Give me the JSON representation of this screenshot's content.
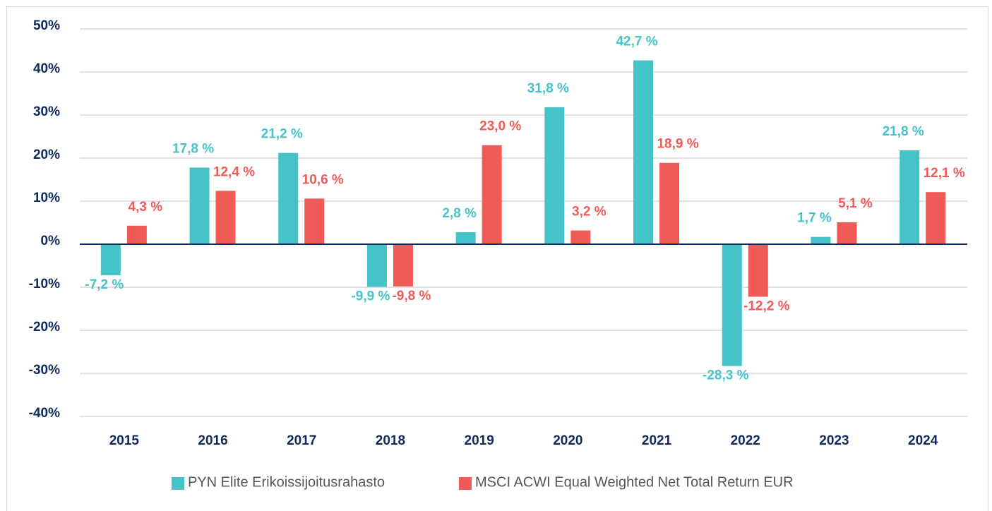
{
  "chart_data": {
    "type": "bar",
    "categories": [
      "2015",
      "2016",
      "2017",
      "2018",
      "2019",
      "2020",
      "2021",
      "2022",
      "2023",
      "2024"
    ],
    "series": [
      {
        "name": "PYN Elite Erikoissijoitusrahasto",
        "color": "#45c3c8",
        "values": [
          -7.2,
          17.8,
          21.2,
          -9.9,
          2.8,
          31.8,
          42.7,
          -28.3,
          1.7,
          21.8
        ],
        "value_labels": [
          "-7,2 %",
          "17,8 %",
          "21,2 %",
          "-9,9 %",
          "2,8 %",
          "31,8 %",
          "42,7 %",
          "-28,3 %",
          "1,7 %",
          "21,8 %"
        ]
      },
      {
        "name": "MSCI ACWI Equal Weighted Net Total Return EUR",
        "color": "#f05a57",
        "values": [
          4.3,
          12.4,
          10.6,
          -9.8,
          23.0,
          3.2,
          18.9,
          -12.2,
          5.1,
          12.1
        ],
        "value_labels": [
          "4,3 %",
          "12,4 %",
          "10,6 %",
          "-9,8 %",
          "23,0 %",
          "3,2 %",
          "18,9 %",
          "-12,2 %",
          "5,1 %",
          "12,1 %"
        ]
      }
    ],
    "ylim": [
      -40,
      50
    ],
    "yticks": [
      {
        "value": 50,
        "label": "50%"
      },
      {
        "value": 40,
        "label": "40%"
      },
      {
        "value": 30,
        "label": "30%"
      },
      {
        "value": 20,
        "label": "20%"
      },
      {
        "value": 10,
        "label": "10%"
      },
      {
        "value": 0,
        "label": "0%"
      },
      {
        "value": -10,
        "label": "-10%"
      },
      {
        "value": -20,
        "label": "-20%"
      },
      {
        "value": -30,
        "label": "-30%"
      },
      {
        "value": -40,
        "label": "-40%"
      }
    ],
    "grid": true,
    "legend": "bottom"
  }
}
